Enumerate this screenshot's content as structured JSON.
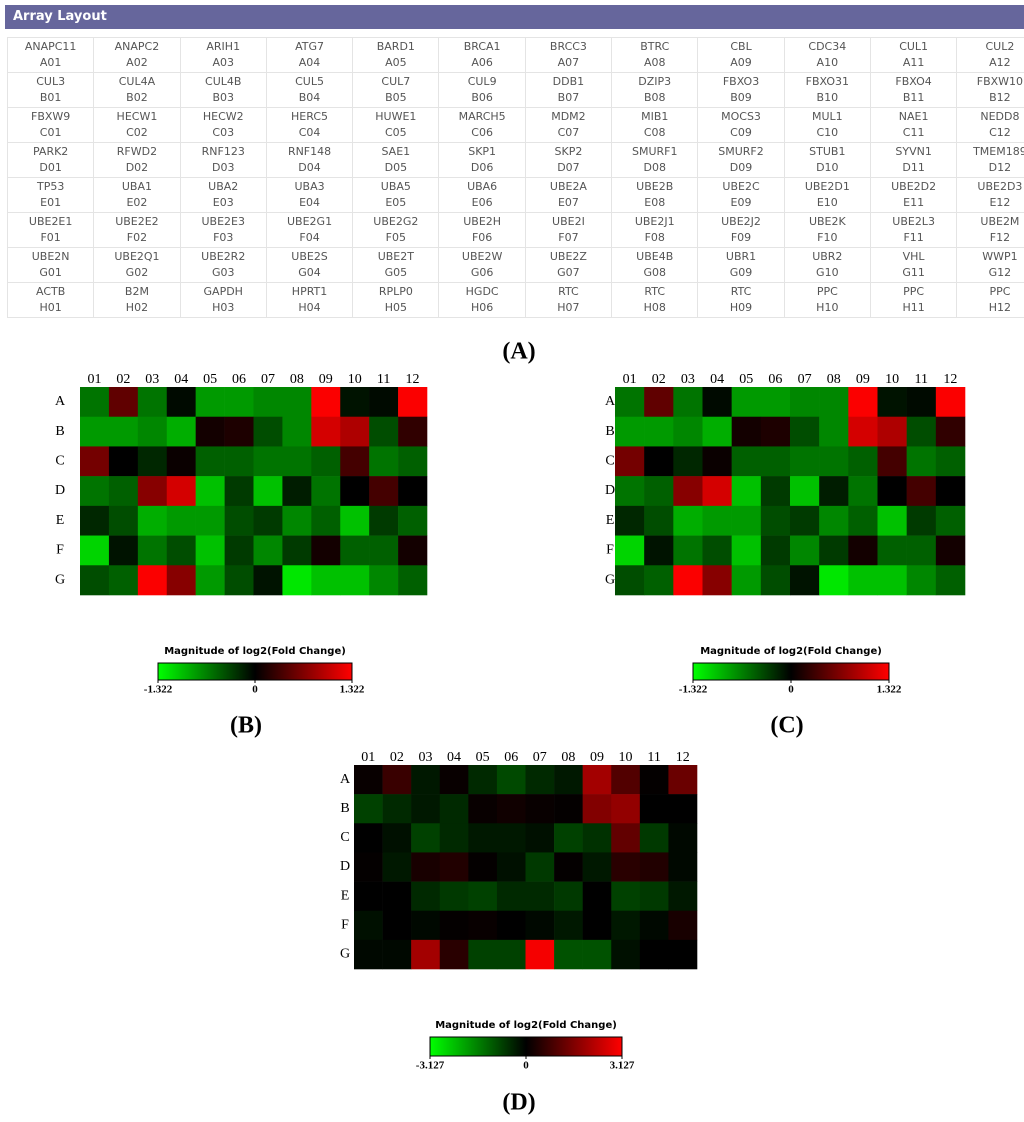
{
  "table": {
    "title": "Array Layout",
    "rows": [
      [
        [
          "ANAPC11",
          "A01"
        ],
        [
          "ANAPC2",
          "A02"
        ],
        [
          "ARIH1",
          "A03"
        ],
        [
          "ATG7",
          "A04"
        ],
        [
          "BARD1",
          "A05"
        ],
        [
          "BRCA1",
          "A06"
        ],
        [
          "BRCC3",
          "A07"
        ],
        [
          "BTRC",
          "A08"
        ],
        [
          "CBL",
          "A09"
        ],
        [
          "CDC34",
          "A10"
        ],
        [
          "CUL1",
          "A11"
        ],
        [
          "CUL2",
          "A12"
        ]
      ],
      [
        [
          "CUL3",
          "B01"
        ],
        [
          "CUL4A",
          "B02"
        ],
        [
          "CUL4B",
          "B03"
        ],
        [
          "CUL5",
          "B04"
        ],
        [
          "CUL7",
          "B05"
        ],
        [
          "CUL9",
          "B06"
        ],
        [
          "DDB1",
          "B07"
        ],
        [
          "DZIP3",
          "B08"
        ],
        [
          "FBXO3",
          "B09"
        ],
        [
          "FBXO31",
          "B10"
        ],
        [
          "FBXO4",
          "B11"
        ],
        [
          "FBXW10",
          "B12"
        ]
      ],
      [
        [
          "FBXW9",
          "C01"
        ],
        [
          "HECW1",
          "C02"
        ],
        [
          "HECW2",
          "C03"
        ],
        [
          "HERC5",
          "C04"
        ],
        [
          "HUWE1",
          "C05"
        ],
        [
          "MARCH5",
          "C06"
        ],
        [
          "MDM2",
          "C07"
        ],
        [
          "MIB1",
          "C08"
        ],
        [
          "MOCS3",
          "C09"
        ],
        [
          "MUL1",
          "C10"
        ],
        [
          "NAE1",
          "C11"
        ],
        [
          "NEDD8",
          "C12"
        ]
      ],
      [
        [
          "PARK2",
          "D01"
        ],
        [
          "RFWD2",
          "D02"
        ],
        [
          "RNF123",
          "D03"
        ],
        [
          "RNF148",
          "D04"
        ],
        [
          "SAE1",
          "D05"
        ],
        [
          "SKP1",
          "D06"
        ],
        [
          "SKP2",
          "D07"
        ],
        [
          "SMURF1",
          "D08"
        ],
        [
          "SMURF2",
          "D09"
        ],
        [
          "STUB1",
          "D10"
        ],
        [
          "SYVN1",
          "D11"
        ],
        [
          "TMEM189",
          "D12"
        ]
      ],
      [
        [
          "TP53",
          "E01"
        ],
        [
          "UBA1",
          "E02"
        ],
        [
          "UBA2",
          "E03"
        ],
        [
          "UBA3",
          "E04"
        ],
        [
          "UBA5",
          "E05"
        ],
        [
          "UBA6",
          "E06"
        ],
        [
          "UBE2A",
          "E07"
        ],
        [
          "UBE2B",
          "E08"
        ],
        [
          "UBE2C",
          "E09"
        ],
        [
          "UBE2D1",
          "E10"
        ],
        [
          "UBE2D2",
          "E11"
        ],
        [
          "UBE2D3",
          "E12"
        ]
      ],
      [
        [
          "UBE2E1",
          "F01"
        ],
        [
          "UBE2E2",
          "F02"
        ],
        [
          "UBE2E3",
          "F03"
        ],
        [
          "UBE2G1",
          "F04"
        ],
        [
          "UBE2G2",
          "F05"
        ],
        [
          "UBE2H",
          "F06"
        ],
        [
          "UBE2I",
          "F07"
        ],
        [
          "UBE2J1",
          "F08"
        ],
        [
          "UBE2J2",
          "F09"
        ],
        [
          "UBE2K",
          "F10"
        ],
        [
          "UBE2L3",
          "F11"
        ],
        [
          "UBE2M",
          "F12"
        ]
      ],
      [
        [
          "UBE2N",
          "G01"
        ],
        [
          "UBE2Q1",
          "G02"
        ],
        [
          "UBE2R2",
          "G03"
        ],
        [
          "UBE2S",
          "G04"
        ],
        [
          "UBE2T",
          "G05"
        ],
        [
          "UBE2W",
          "G06"
        ],
        [
          "UBE2Z",
          "G07"
        ],
        [
          "UBE4B",
          "G08"
        ],
        [
          "UBR1",
          "G09"
        ],
        [
          "UBR2",
          "G10"
        ],
        [
          "VHL",
          "G11"
        ],
        [
          "WWP1",
          "G12"
        ]
      ],
      [
        [
          "ACTB",
          "H01"
        ],
        [
          "B2M",
          "H02"
        ],
        [
          "GAPDH",
          "H03"
        ],
        [
          "HPRT1",
          "H04"
        ],
        [
          "RPLP0",
          "H05"
        ],
        [
          "HGDC",
          "H06"
        ],
        [
          "RTC",
          "H07"
        ],
        [
          "RTC",
          "H08"
        ],
        [
          "RTC",
          "H09"
        ],
        [
          "PPC",
          "H10"
        ],
        [
          "PPC",
          "H11"
        ],
        [
          "PPC",
          "H12"
        ]
      ]
    ]
  },
  "panel_labels": [
    "(A)",
    "(B)",
    "(C)",
    "(D)"
  ],
  "heatmaps": [
    {
      "columns": [
        "01",
        "02",
        "03",
        "04",
        "05",
        "06",
        "07",
        "08",
        "09",
        "10",
        "11",
        "12"
      ],
      "rows": [
        "A",
        "B",
        "C",
        "D",
        "E",
        "F",
        "G"
      ],
      "values": [
        [
          -0.6,
          0.5,
          -0.6,
          -0.05,
          -0.8,
          -0.8,
          -0.7,
          -0.7,
          1.3,
          -0.1,
          -0.05,
          1.3
        ],
        [
          -0.8,
          -0.8,
          -0.7,
          -0.9,
          0.1,
          0.15,
          -0.4,
          -0.7,
          1.1,
          0.9,
          -0.4,
          0.25
        ],
        [
          0.6,
          0,
          -0.2,
          0.05,
          -0.5,
          -0.5,
          -0.6,
          -0.6,
          -0.5,
          0.35,
          -0.6,
          -0.5
        ],
        [
          -0.6,
          -0.5,
          0.7,
          1.1,
          -1.0,
          -0.3,
          -1.0,
          -0.15,
          -0.6,
          0,
          0.35,
          0
        ],
        [
          -0.2,
          -0.4,
          -0.9,
          -0.8,
          -0.8,
          -0.4,
          -0.3,
          -0.7,
          -0.5,
          -1.0,
          -0.3,
          -0.5
        ],
        [
          -1.1,
          -0.1,
          -0.6,
          -0.4,
          -1.0,
          -0.3,
          -0.7,
          -0.3,
          0.1,
          -0.5,
          -0.5,
          0.1
        ],
        [
          -0.4,
          -0.5,
          1.3,
          0.7,
          -0.8,
          -0.4,
          -0.1,
          -1.2,
          -1.0,
          -1.0,
          -0.7,
          -0.5
        ]
      ],
      "colorbar": {
        "title": "Magnitude of log2(Fold Change)",
        "lim": [
          -1.322,
          1.322
        ],
        "ticks": [
          -1.322,
          0,
          1.322
        ],
        "colors": [
          "#00ff00",
          "#000000",
          "#ff0000"
        ]
      }
    },
    {
      "columns": [
        "01",
        "02",
        "03",
        "04",
        "05",
        "06",
        "07",
        "08",
        "09",
        "10",
        "11",
        "12"
      ],
      "rows": [
        "A",
        "B",
        "C",
        "D",
        "E",
        "F",
        "G"
      ],
      "values": [
        [
          -0.6,
          0.5,
          -0.6,
          -0.05,
          -0.8,
          -0.8,
          -0.7,
          -0.7,
          1.3,
          -0.1,
          -0.05,
          1.3
        ],
        [
          -0.8,
          -0.8,
          -0.7,
          -0.9,
          0.1,
          0.15,
          -0.4,
          -0.7,
          1.1,
          0.9,
          -0.4,
          0.25
        ],
        [
          0.6,
          0,
          -0.2,
          0.05,
          -0.5,
          -0.5,
          -0.6,
          -0.6,
          -0.5,
          0.35,
          -0.6,
          -0.5
        ],
        [
          -0.6,
          -0.5,
          0.7,
          1.1,
          -1.0,
          -0.3,
          -1.0,
          -0.15,
          -0.6,
          0,
          0.35,
          0
        ],
        [
          -0.2,
          -0.4,
          -0.9,
          -0.8,
          -0.8,
          -0.4,
          -0.3,
          -0.7,
          -0.5,
          -1.0,
          -0.3,
          -0.5
        ],
        [
          -1.1,
          -0.1,
          -0.6,
          -0.4,
          -1.0,
          -0.3,
          -0.7,
          -0.3,
          0.1,
          -0.5,
          -0.5,
          0.1
        ],
        [
          -0.4,
          -0.5,
          1.3,
          0.7,
          -0.8,
          -0.4,
          -0.1,
          -1.2,
          -1.0,
          -1.0,
          -0.7,
          -0.5
        ]
      ],
      "colorbar": {
        "title": "Magnitude of log2(Fold Change)",
        "lim": [
          -1.322,
          1.322
        ],
        "ticks": [
          -1.322,
          0,
          1.322
        ],
        "colors": [
          "#00ff00",
          "#000000",
          "#ff0000"
        ]
      }
    },
    {
      "columns": [
        "01",
        "02",
        "03",
        "04",
        "05",
        "06",
        "07",
        "08",
        "09",
        "10",
        "11",
        "12"
      ],
      "rows": [
        "A",
        "B",
        "C",
        "D",
        "E",
        "F",
        "G"
      ],
      "values": [
        [
          0.1,
          0.7,
          -0.3,
          0.1,
          -0.5,
          -0.9,
          -0.5,
          -0.3,
          2.0,
          1.0,
          0.05,
          1.3
        ],
        [
          -0.8,
          -0.5,
          -0.3,
          -0.5,
          0.1,
          0.2,
          0.1,
          0.05,
          1.6,
          1.8,
          0,
          0
        ],
        [
          0,
          -0.2,
          -0.8,
          -0.5,
          -0.3,
          -0.3,
          -0.2,
          -0.8,
          -0.6,
          1.2,
          -0.7,
          -0.1
        ],
        [
          0.05,
          -0.3,
          0.3,
          0.4,
          0.05,
          -0.2,
          -0.7,
          0.05,
          -0.3,
          0.5,
          0.4,
          -0.1
        ],
        [
          0,
          0,
          -0.5,
          -0.7,
          -0.8,
          -0.5,
          -0.5,
          -0.7,
          0,
          -0.8,
          -0.7,
          -0.3
        ],
        [
          -0.2,
          0,
          -0.1,
          0.05,
          0.1,
          0,
          -0.1,
          -0.3,
          0,
          -0.3,
          -0.1,
          0.3
        ],
        [
          -0.1,
          -0.1,
          2.0,
          0.5,
          -0.8,
          -0.8,
          3.0,
          -1.0,
          -1.0,
          -0.2,
          0,
          0
        ]
      ],
      "colorbar": {
        "title": "Magnitude of log2(Fold Change)",
        "lim": [
          -3.127,
          3.127
        ],
        "ticks": [
          -3.127,
          0,
          3.127
        ],
        "colors": [
          "#00ff00",
          "#000000",
          "#ff0000"
        ]
      }
    }
  ]
}
